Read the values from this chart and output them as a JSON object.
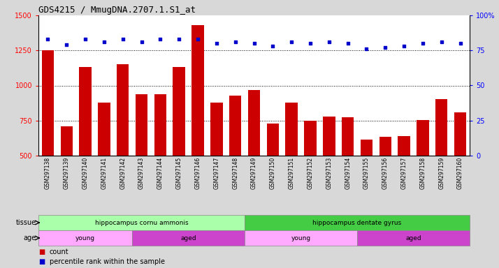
{
  "title": "GDS4215 / MmugDNA.2707.1.S1_at",
  "samples": [
    "GSM297138",
    "GSM297139",
    "GSM297140",
    "GSM297141",
    "GSM297142",
    "GSM297143",
    "GSM297144",
    "GSM297145",
    "GSM297146",
    "GSM297147",
    "GSM297148",
    "GSM297149",
    "GSM297150",
    "GSM297151",
    "GSM297152",
    "GSM297153",
    "GSM297154",
    "GSM297155",
    "GSM297156",
    "GSM297157",
    "GSM297158",
    "GSM297159",
    "GSM297160"
  ],
  "counts": [
    1250,
    710,
    1130,
    880,
    1150,
    940,
    940,
    1130,
    1430,
    880,
    930,
    970,
    730,
    880,
    750,
    780,
    775,
    615,
    635,
    640,
    755,
    905,
    810
  ],
  "percentiles": [
    83,
    79,
    83,
    81,
    83,
    81,
    83,
    83,
    83,
    80,
    81,
    80,
    78,
    81,
    80,
    81,
    80,
    76,
    77,
    78,
    80,
    81,
    80
  ],
  "bar_color": "#cc0000",
  "dot_color": "#0000cc",
  "ylim_left": [
    500,
    1500
  ],
  "ylim_right": [
    0,
    100
  ],
  "yticks_left": [
    500,
    750,
    1000,
    1250,
    1500
  ],
  "yticks_right": [
    0,
    25,
    50,
    75,
    100
  ],
  "grid_values": [
    750,
    1000,
    1250
  ],
  "tissue_groups": [
    {
      "label": "hippocampus cornu ammonis",
      "start": 0,
      "end": 11,
      "color": "#aaffaa"
    },
    {
      "label": "hippocampus dentate gyrus",
      "start": 11,
      "end": 23,
      "color": "#44cc44"
    }
  ],
  "age_groups": [
    {
      "label": "young",
      "start": 0,
      "end": 5,
      "color": "#ffaaff"
    },
    {
      "label": "aged",
      "start": 5,
      "end": 11,
      "color": "#cc44cc"
    },
    {
      "label": "young",
      "start": 11,
      "end": 17,
      "color": "#ffaaff"
    },
    {
      "label": "aged",
      "start": 17,
      "end": 23,
      "color": "#cc44cc"
    }
  ],
  "bg_color": "#d8d8d8",
  "plot_bg": "#ffffff",
  "xtick_bg": "#d0d0d0"
}
